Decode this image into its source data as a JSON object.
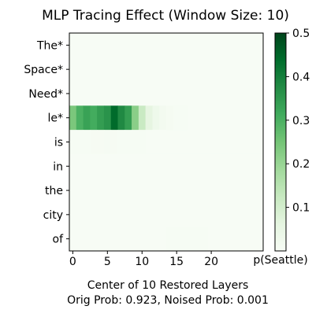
{
  "chart_data": {
    "type": "heatmap",
    "title": "MLP Tracing Effect (Window Size: 10)",
    "xlabel": "Center of 10 Restored Layers",
    "subtitle": "Orig Prob: 0.923, Noised Prob: 0.001",
    "colorbar_label": "p(Seattle)",
    "x_ticks": [
      0,
      5,
      10,
      15,
      20
    ],
    "n_layers": 28,
    "rows": [
      "The*",
      "Space*",
      "Need*",
      "le*",
      "is",
      "in",
      "the",
      "city",
      "of"
    ],
    "vmin": 0.0,
    "vmax": 0.5,
    "colorbar_ticks": [
      0.1,
      0.2,
      0.3,
      0.4,
      0.5
    ],
    "colormap": [
      "#f7fcf5",
      "#e5f5e0",
      "#c7e9c0",
      "#a1d99b",
      "#74c476",
      "#41ab5d",
      "#238b45",
      "#006d2c",
      "#00441b"
    ],
    "values": [
      [
        0.001,
        0.001,
        0.001,
        0.001,
        0.001,
        0.001,
        0.001,
        0.001,
        0.001,
        0.001,
        0.001,
        0.001,
        0.001,
        0.001,
        0.001,
        0.001,
        0.001,
        0.001,
        0.001,
        0.001,
        0.001,
        0.001,
        0.001,
        0.001,
        0.001,
        0.001,
        0.001,
        0.001
      ],
      [
        0.001,
        0.001,
        0.001,
        0.001,
        0.001,
        0.001,
        0.001,
        0.001,
        0.001,
        0.001,
        0.001,
        0.001,
        0.001,
        0.001,
        0.001,
        0.001,
        0.001,
        0.001,
        0.001,
        0.001,
        0.001,
        0.001,
        0.001,
        0.001,
        0.001,
        0.001,
        0.001,
        0.001
      ],
      [
        0.001,
        0.001,
        0.001,
        0.001,
        0.001,
        0.001,
        0.001,
        0.001,
        0.001,
        0.001,
        0.001,
        0.001,
        0.001,
        0.001,
        0.001,
        0.001,
        0.001,
        0.001,
        0.001,
        0.001,
        0.001,
        0.001,
        0.001,
        0.001,
        0.001,
        0.001,
        0.001,
        0.001
      ],
      [
        0.24,
        0.3,
        0.33,
        0.31,
        0.34,
        0.36,
        0.44,
        0.38,
        0.34,
        0.22,
        0.12,
        0.06,
        0.03,
        0.015,
        0.008,
        0.004,
        0.002,
        0.001,
        0.001,
        0.001,
        0.001,
        0.001,
        0.001,
        0.001,
        0.001,
        0.001,
        0.001,
        0.001
      ],
      [
        0.003,
        0.003,
        0.004,
        0.005,
        0.005,
        0.006,
        0.005,
        0.004,
        0.003,
        0.002,
        0.002,
        0.001,
        0.001,
        0.001,
        0.001,
        0.001,
        0.001,
        0.001,
        0.001,
        0.001,
        0.001,
        0.001,
        0.001,
        0.001,
        0.001,
        0.001,
        0.001,
        0.001
      ],
      [
        0.001,
        0.001,
        0.001,
        0.001,
        0.001,
        0.001,
        0.001,
        0.001,
        0.001,
        0.001,
        0.001,
        0.001,
        0.001,
        0.001,
        0.001,
        0.001,
        0.001,
        0.001,
        0.001,
        0.001,
        0.001,
        0.001,
        0.001,
        0.001,
        0.001,
        0.001,
        0.001,
        0.001
      ],
      [
        0.001,
        0.001,
        0.001,
        0.001,
        0.001,
        0.001,
        0.001,
        0.001,
        0.001,
        0.001,
        0.001,
        0.001,
        0.001,
        0.001,
        0.001,
        0.001,
        0.001,
        0.001,
        0.001,
        0.001,
        0.001,
        0.001,
        0.001,
        0.001,
        0.001,
        0.001,
        0.001,
        0.001
      ],
      [
        0.001,
        0.001,
        0.001,
        0.001,
        0.001,
        0.001,
        0.001,
        0.001,
        0.001,
        0.001,
        0.001,
        0.001,
        0.001,
        0.001,
        0.001,
        0.001,
        0.001,
        0.001,
        0.001,
        0.001,
        0.001,
        0.001,
        0.001,
        0.001,
        0.001,
        0.001,
        0.001,
        0.001
      ],
      [
        0.001,
        0.001,
        0.001,
        0.001,
        0.001,
        0.001,
        0.001,
        0.001,
        0.001,
        0.001,
        0.001,
        0.001,
        0.001,
        0.001,
        0.002,
        0.003,
        0.004,
        0.004,
        0.003,
        0.002,
        0.001,
        0.001,
        0.001,
        0.001,
        0.001,
        0.001,
        0.001,
        0.001
      ]
    ]
  }
}
